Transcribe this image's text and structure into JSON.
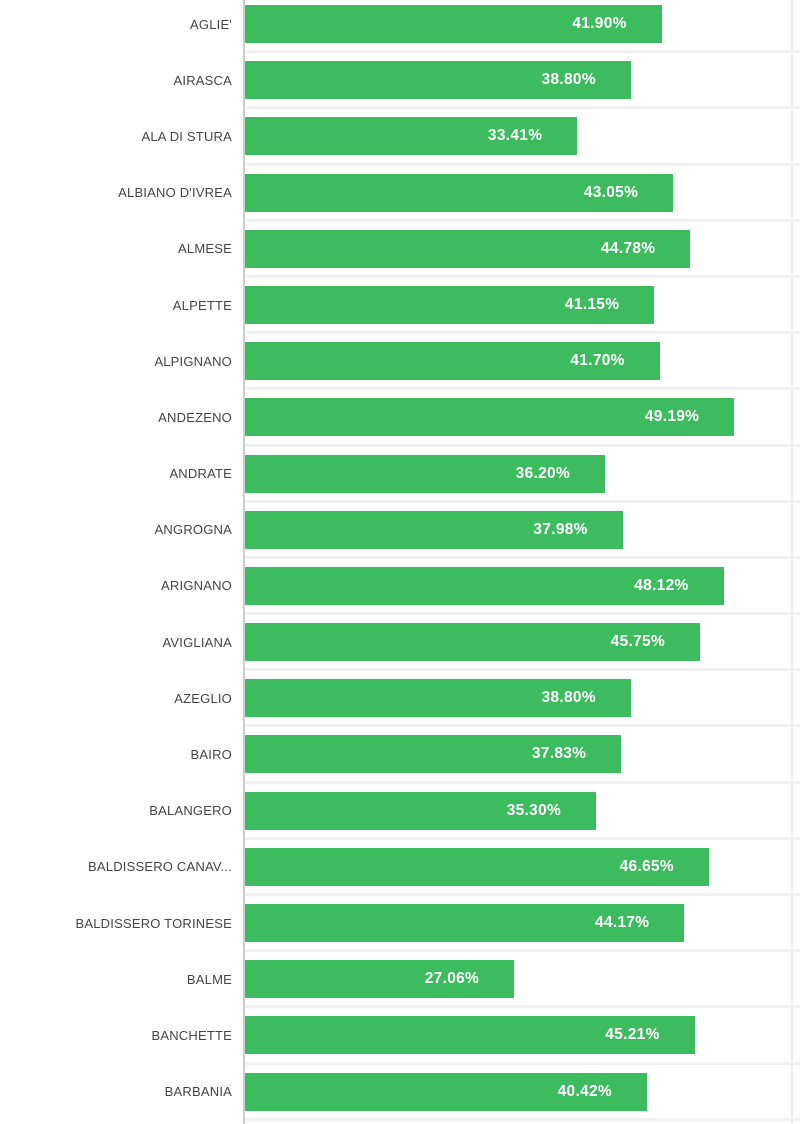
{
  "chart_data": {
    "type": "bar",
    "orientation": "horizontal",
    "title": "",
    "xlabel": "",
    "ylabel": "",
    "xlim": [
      0,
      55.8
    ],
    "grid": {
      "row_separators": true,
      "vertical_gridline_at_percent": 55
    },
    "legend": "none",
    "categories": [
      "AGLIE'",
      "AIRASCA",
      "ALA DI STURA",
      "ALBIANO D'IVREA",
      "ALMESE",
      "ALPETTE",
      "ALPIGNANO",
      "ANDEZENO",
      "ANDRATE",
      "ANGROGNA",
      "ARIGNANO",
      "AVIGLIANA",
      "AZEGLIO",
      "BAIRO",
      "BALANGERO",
      "BALDISSERO CANAV...",
      "BALDISSERO TORINESE",
      "BALME",
      "BANCHETTE",
      "BARBANIA"
    ],
    "values": [
      41.9,
      38.8,
      33.41,
      43.05,
      44.78,
      41.15,
      41.7,
      49.19,
      36.2,
      37.98,
      48.12,
      45.75,
      38.8,
      37.83,
      35.3,
      46.65,
      44.17,
      27.06,
      45.21,
      40.42
    ],
    "value_labels": [
      "41.90%",
      "38.80%",
      "33.41%",
      "43.05%",
      "44.78%",
      "41.15%",
      "41.70%",
      "49.19%",
      "36.20%",
      "37.98%",
      "48.12%",
      "45.75%",
      "38.80%",
      "37.83%",
      "35.30%",
      "46.65%",
      "44.17%",
      "27.06%",
      "45.21%",
      "40.42%"
    ],
    "colors": {
      "bar": "#3dbb5f",
      "value_label": "#ffffff",
      "category_label": "#444444",
      "gridline": "#f1f1f1",
      "axis_line": "#cccccc",
      "vertical_gridline": "#ececec",
      "background": "#ffffff"
    }
  }
}
